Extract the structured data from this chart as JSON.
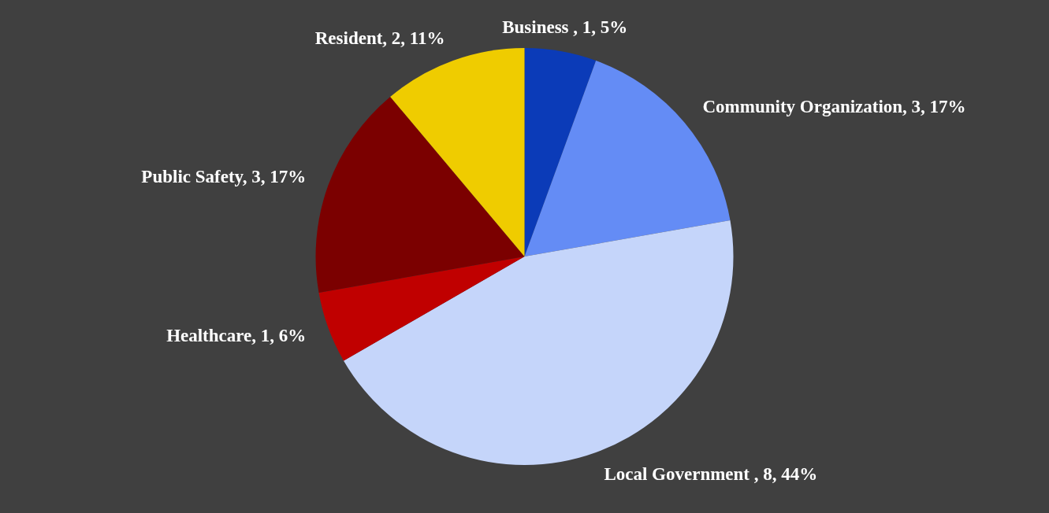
{
  "chart_data": {
    "type": "pie",
    "categories": [
      "Business ",
      "Community Organization",
      "Local Government ",
      "Healthcare",
      "Public Safety",
      "Resident"
    ],
    "values": [
      1,
      3,
      8,
      1,
      3,
      2
    ],
    "colors": [
      "#0b3bb8",
      "#648cf5",
      "#c5d5fa",
      "#c00000",
      "#7b0000",
      "#efcc00"
    ],
    "value_labels": [
      "1, 5%",
      "3, 17%",
      "8, 44%",
      "1, 6%",
      "3, 17%",
      "2, 11%"
    ]
  }
}
